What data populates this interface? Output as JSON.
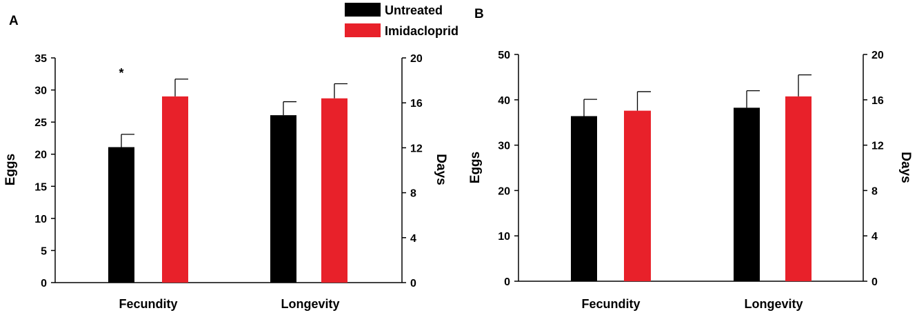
{
  "legend": [
    {
      "label": "Untreated",
      "color": "#000000"
    },
    {
      "label": "Imidacloprid",
      "color": "#e8212a"
    }
  ],
  "chart_data": [
    {
      "panel": "A",
      "type": "bar",
      "categories": [
        "Fecundity",
        "Longevity"
      ],
      "ylabel_left": "Eggs",
      "ylabel_right": "Days",
      "ylim_left": [
        0,
        35
      ],
      "yticks_left": [
        0,
        5,
        10,
        15,
        20,
        25,
        30,
        35
      ],
      "ylim_right": [
        0,
        20
      ],
      "yticks_right": [
        0,
        4,
        8,
        12,
        16,
        20
      ],
      "series": [
        {
          "name": "Untreated",
          "color": "#000000",
          "points": [
            {
              "value": 21.1,
              "error": 2.0,
              "axis": "left"
            },
            {
              "value": 14.9,
              "error": 1.2,
              "axis": "right"
            }
          ]
        },
        {
          "name": "Imidacloprid",
          "color": "#e8212a",
          "points": [
            {
              "value": 29.0,
              "error": 2.7,
              "axis": "left"
            },
            {
              "value": 16.4,
              "error": 1.3,
              "axis": "right"
            }
          ]
        }
      ],
      "annotations": [
        {
          "text": "*",
          "category": "Fecundity",
          "value": 33.3,
          "axis": "left"
        }
      ]
    },
    {
      "panel": "B",
      "type": "bar",
      "categories": [
        "Fecundity",
        "Longevity"
      ],
      "ylabel_left": "Eggs",
      "ylabel_right": "Days",
      "ylim_left": [
        0,
        50
      ],
      "yticks_left": [
        0,
        10,
        20,
        30,
        40,
        50
      ],
      "ylim_right": [
        0,
        20
      ],
      "yticks_right": [
        0,
        4,
        8,
        12,
        16,
        20
      ],
      "series": [
        {
          "name": "Untreated",
          "color": "#000000",
          "points": [
            {
              "value": 36.4,
              "error": 3.7,
              "axis": "left"
            },
            {
              "value": 15.3,
              "error": 1.5,
              "axis": "right"
            }
          ]
        },
        {
          "name": "Imidacloprid",
          "color": "#e8212a",
          "points": [
            {
              "value": 37.6,
              "error": 4.2,
              "axis": "left"
            },
            {
              "value": 16.3,
              "error": 1.9,
              "axis": "right"
            }
          ]
        }
      ],
      "annotations": []
    }
  ]
}
